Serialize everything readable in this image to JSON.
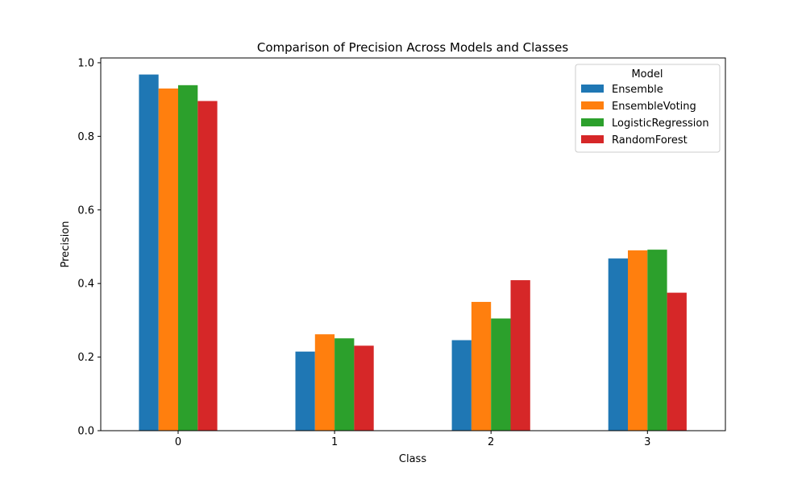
{
  "chart_data": {
    "type": "bar",
    "title": "Comparison of Precision Across Models and Classes",
    "xlabel": "Class",
    "ylabel": "Precision",
    "categories": [
      "0",
      "1",
      "2",
      "3"
    ],
    "ylim": [
      0,
      1.013
    ],
    "yticks": [
      "0.0",
      "0.2",
      "0.4",
      "0.6",
      "0.8",
      "1.0"
    ],
    "grid": false,
    "legend": {
      "title": "Model",
      "placement": "top-right"
    },
    "series": [
      {
        "name": "Ensemble",
        "color": "#1f77b4",
        "values": [
          0.968,
          0.215,
          0.246,
          0.468
        ]
      },
      {
        "name": "EnsembleVoting",
        "color": "#ff7f0e",
        "values": [
          0.93,
          0.262,
          0.35,
          0.49
        ]
      },
      {
        "name": "LogisticRegression",
        "color": "#2ca02c",
        "values": [
          0.939,
          0.251,
          0.305,
          0.492
        ]
      },
      {
        "name": "RandomForest",
        "color": "#d62728",
        "values": [
          0.896,
          0.231,
          0.409,
          0.375
        ]
      }
    ]
  }
}
